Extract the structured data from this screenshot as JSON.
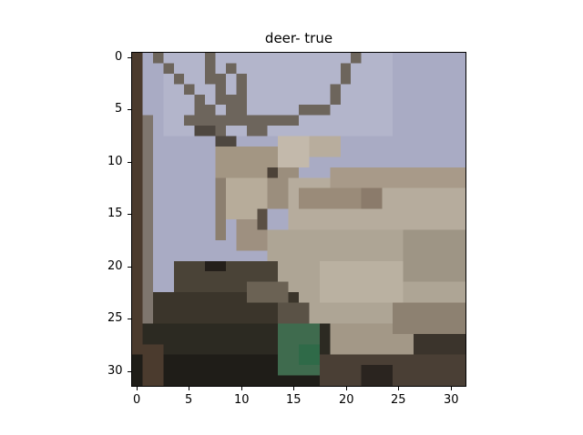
{
  "title": "deer- true",
  "axes": {
    "x_ticks": [
      "0",
      "5",
      "10",
      "15",
      "20",
      "25",
      "30"
    ],
    "y_ticks": [
      "0",
      "5",
      "10",
      "15",
      "20",
      "25",
      "30"
    ],
    "xlim": [
      -0.5,
      31.5
    ],
    "ylim": [
      31.5,
      -0.5
    ]
  },
  "image": {
    "subject": "deer",
    "resolution": "32x32",
    "pixelated": true,
    "colors": {
      "sky": "#a9abc4",
      "sky_light": "#b8bad0",
      "antler": "#6a6258",
      "fur_light": "#b9ad9c",
      "fur_mid": "#9c8e7b",
      "fur_dark": "#7a6d60",
      "left_edge": "#4b3b2e",
      "foreground_dark": "#2c2a22",
      "foreground_mid": "#4a4236",
      "green": "#3f6b4e"
    }
  }
}
